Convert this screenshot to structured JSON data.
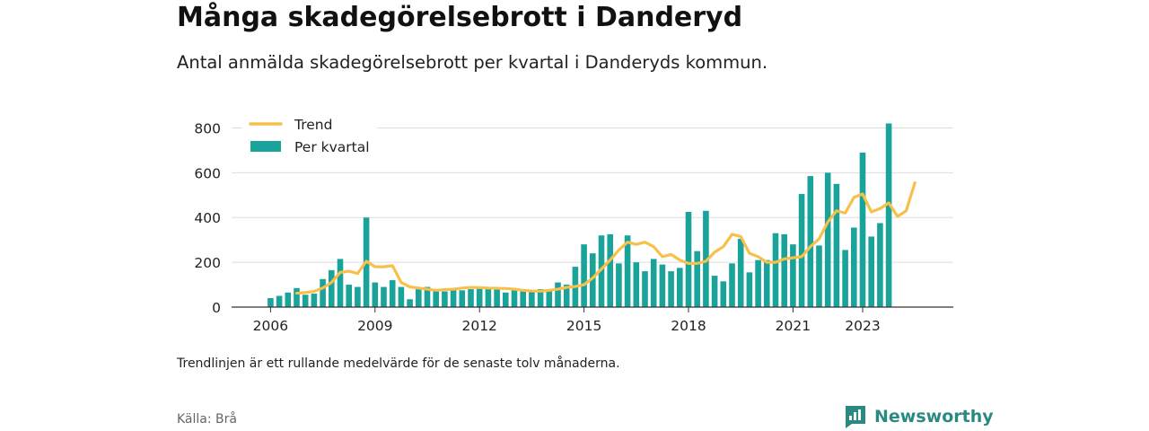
{
  "header": {
    "title": "Många skadegörelsebrott i Danderyd",
    "subtitle": "Antal anmälda skadegörelsebrott per kvartal i Danderyds kommun."
  },
  "footer": {
    "note": "Trendlinjen är ett rullande medelvärde för de senaste tolv månaderna.",
    "source": "Källa: Brå",
    "brand": "Newsworthy"
  },
  "colors": {
    "bars": "#1aa39a",
    "trend": "#f7c04a",
    "grid": "#dddddd",
    "brand": "#2a8a82"
  },
  "chart_data": {
    "type": "bar",
    "title": "Många skadegörelsebrott i Danderyd",
    "subtitle": "Antal anmälda skadegörelsebrott per kvartal i Danderyds kommun.",
    "ylim": [
      0,
      850
    ],
    "yticks": [
      0,
      200,
      400,
      600,
      800
    ],
    "xticks": [
      "2006",
      "2009",
      "2012",
      "2015",
      "2018",
      "2021",
      "2023"
    ],
    "grid": true,
    "legend_position": "top-left",
    "series": [
      {
        "name": "Per kvartal",
        "type": "bar",
        "start": "2006 Q1",
        "values": [
          40,
          50,
          65,
          85,
          55,
          60,
          125,
          165,
          215,
          100,
          90,
          400,
          110,
          90,
          120,
          90,
          35,
          80,
          90,
          75,
          70,
          80,
          75,
          80,
          85,
          85,
          80,
          65,
          75,
          70,
          70,
          80,
          80,
          110,
          100,
          180,
          280,
          240,
          320,
          325,
          195,
          320,
          200,
          160,
          215,
          190,
          160,
          175,
          425,
          250,
          430,
          140,
          115,
          195,
          305,
          155,
          210,
          210,
          330,
          325,
          280,
          505,
          585,
          275,
          600,
          550,
          255,
          355,
          690,
          315,
          375,
          820
        ]
      },
      {
        "name": "Trend",
        "type": "line",
        "start": "2006 Q4",
        "values": [
          62,
          65,
          70,
          85,
          110,
          155,
          160,
          150,
          205,
          180,
          180,
          185,
          110,
          90,
          85,
          80,
          75,
          78,
          80,
          85,
          88,
          87,
          85,
          84,
          83,
          80,
          75,
          72,
          71,
          75,
          80,
          88,
          92,
          100,
          130,
          170,
          210,
          255,
          290,
          280,
          290,
          270,
          225,
          235,
          210,
          195,
          195,
          205,
          245,
          270,
          325,
          315,
          240,
          225,
          200,
          200,
          215,
          220,
          225,
          270,
          305,
          380,
          430,
          420,
          490,
          505,
          425,
          440,
          465,
          405,
          430,
          555
        ]
      }
    ]
  }
}
